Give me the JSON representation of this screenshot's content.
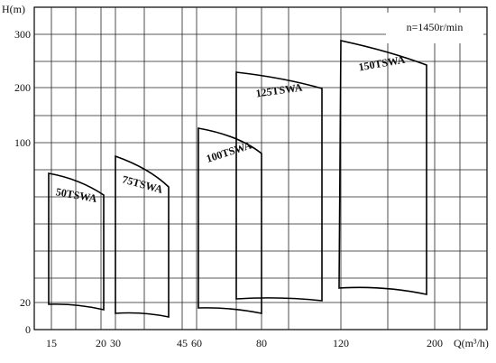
{
  "y_axis": {
    "label": "H(m)",
    "ticks": [
      "300",
      "200",
      "100",
      "20",
      "0"
    ]
  },
  "x_axis": {
    "label": "Q(m³/h)",
    "ticks": [
      "15",
      "20",
      "30",
      "45",
      "60",
      "80",
      "120",
      "200"
    ]
  },
  "note": "n=1450r/min",
  "regions": [
    {
      "label": "50TSWA"
    },
    {
      "label": "75TSWA"
    },
    {
      "label": "100TSWA"
    },
    {
      "label": "125TSWA"
    },
    {
      "label": "150TSWA"
    }
  ]
}
